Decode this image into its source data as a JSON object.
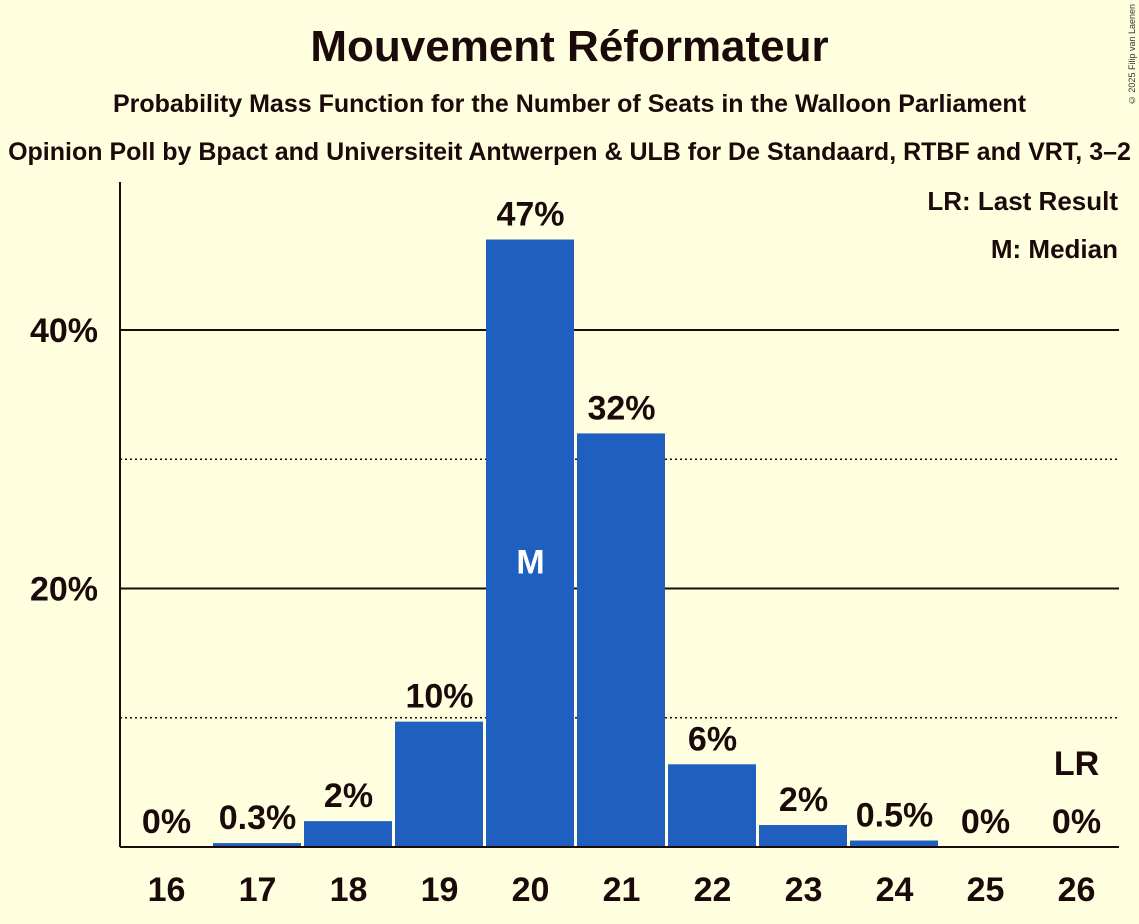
{
  "title": "Mouvement Réformateur",
  "subtitle": "Probability Mass Function for the Number of Seats in the Walloon Parliament",
  "subtitle2": "Opinion Poll by Bpact and Universiteit Antwerpen & ULB for De Standaard, RTBF and VRT, 3–2",
  "copyright": "© 2025 Filip van Laenen",
  "legend": {
    "last_result": "LR: Last Result",
    "median": "M: Median"
  },
  "colors": {
    "bar": "#1F5FBF",
    "background": "#FFFFE0",
    "text": "#1a0a0a"
  },
  "chart_data": {
    "type": "bar",
    "categories": [
      "16",
      "17",
      "18",
      "19",
      "20",
      "21",
      "22",
      "23",
      "24",
      "25",
      "26"
    ],
    "values": [
      0,
      0.3,
      2,
      9.7,
      47,
      32,
      6.4,
      1.7,
      0.5,
      0,
      0
    ],
    "value_labels": [
      "0%",
      "0.3%",
      "2%",
      "10%",
      "47%",
      "32%",
      "6%",
      "2%",
      "0.5%",
      "0%",
      "0%"
    ],
    "y_ticks": [
      {
        "value": 20,
        "label": "20%",
        "style": "solid"
      },
      {
        "value": 40,
        "label": "40%",
        "style": "solid"
      }
    ],
    "y_minor_gridlines": [
      10,
      30
    ],
    "ylim": [
      0,
      50
    ],
    "median_category": "20",
    "median_marker": "M",
    "last_result_category": "26",
    "last_result_marker": "LR",
    "legend_position": "top-right"
  }
}
